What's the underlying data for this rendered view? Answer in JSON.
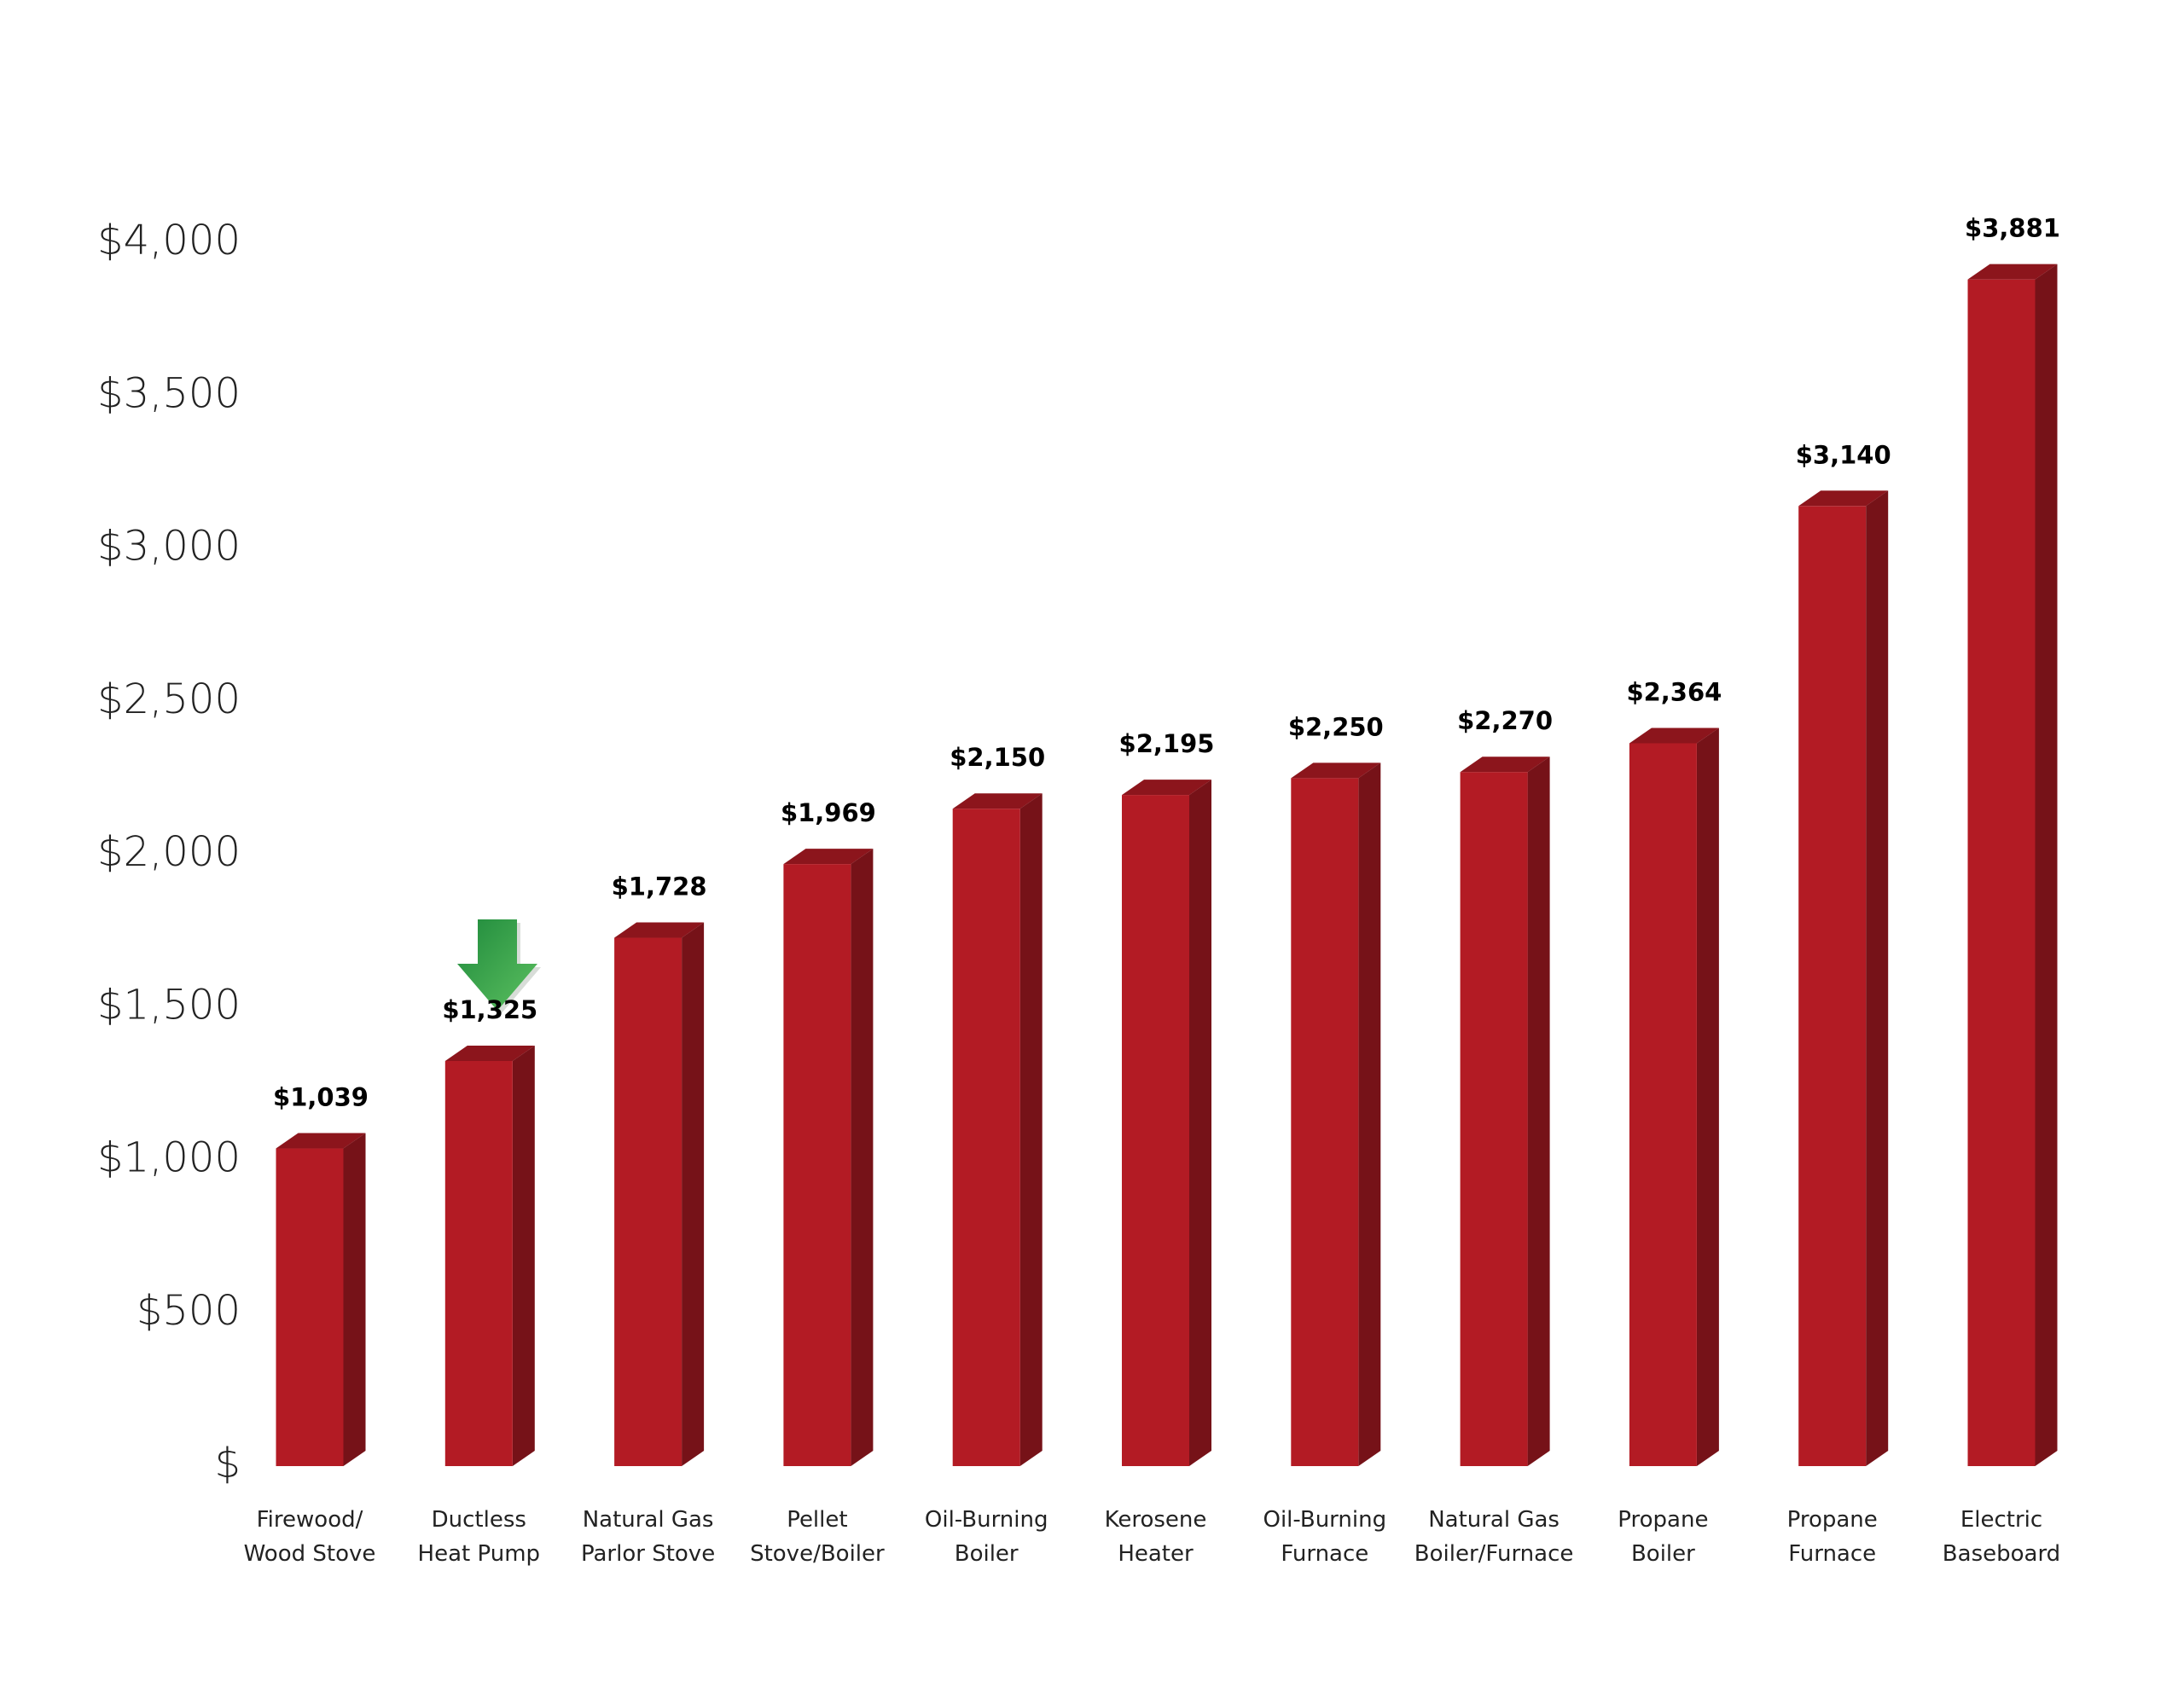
{
  "chart_data": {
    "type": "bar3d",
    "categories": [
      "Firewood/\nWood Stove",
      "Ductless\nHeat Pump",
      "Natural Gas\nParlor Stove",
      "Pellet\nStove/Boiler",
      "Oil-Burning\nBoiler",
      "Kerosene\nHeater",
      "Oil-Burning\nFurnace",
      "Natural Gas\nBoiler/Furnace",
      "Propane\nBoiler",
      "Propane\nFurnace",
      "Electric\nBaseboard"
    ],
    "values": [
      1039,
      1325,
      1728,
      1969,
      2150,
      2195,
      2250,
      2270,
      2364,
      3140,
      3881
    ],
    "value_labels": [
      "$1,039",
      "$1,325",
      "$1,728",
      "$1,969",
      "$2,150",
      "$2,195",
      "$2,250",
      "$2,270",
      "$2,364",
      "$3,140",
      "$3,881"
    ],
    "color": "#b31b24",
    "ylim": [
      0,
      4000
    ],
    "yticks": [
      {
        "value": 0,
        "label": "$"
      },
      {
        "value": 500,
        "label": "$500"
      },
      {
        "value": 1000,
        "label": "$1,000"
      },
      {
        "value": 1500,
        "label": "$1,500"
      },
      {
        "value": 2000,
        "label": "$2,000"
      },
      {
        "value": 2500,
        "label": "$2,500"
      },
      {
        "value": 3000,
        "label": "$3,000"
      },
      {
        "value": 3500,
        "label": "$3,500"
      },
      {
        "value": 4000,
        "label": "$4,000"
      }
    ],
    "grid": false
  }
}
